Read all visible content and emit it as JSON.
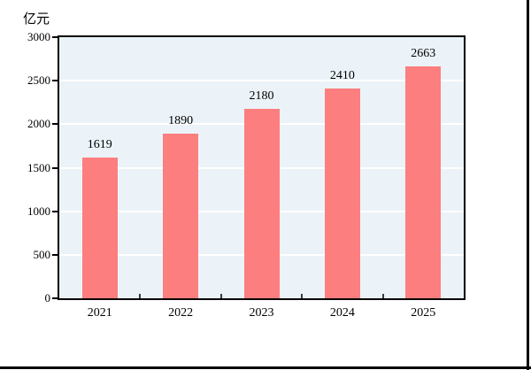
{
  "page": {
    "background_color": "#ffffff",
    "border_color": "#000000"
  },
  "chart_data": {
    "type": "bar",
    "title": "",
    "unit_label": "亿元",
    "categories": [
      "2021",
      "2022",
      "2023",
      "2024",
      "2025"
    ],
    "values": [
      1619,
      1890,
      2180,
      2410,
      2663
    ],
    "value_labels": [
      "1619",
      "1890",
      "2180",
      "2410",
      "2663"
    ],
    "xlabel": "",
    "ylabel": "亿元",
    "ylim": [
      0,
      3000
    ],
    "y_ticks": [
      0,
      500,
      1000,
      1500,
      2000,
      2500,
      3000
    ],
    "y_tick_labels": [
      "0",
      "500",
      "1000",
      "1500",
      "2000",
      "2500",
      "3000"
    ],
    "grid": "horizontal gridlines at 500 intervals, white, drawn on plot panel",
    "legend": "none",
    "bar_color": "#fd7e7e",
    "plot_bg_color": "#ebf3f8",
    "gridline_color": "#ffffff",
    "axis_color": "#000000",
    "text_color": "#000000"
  }
}
